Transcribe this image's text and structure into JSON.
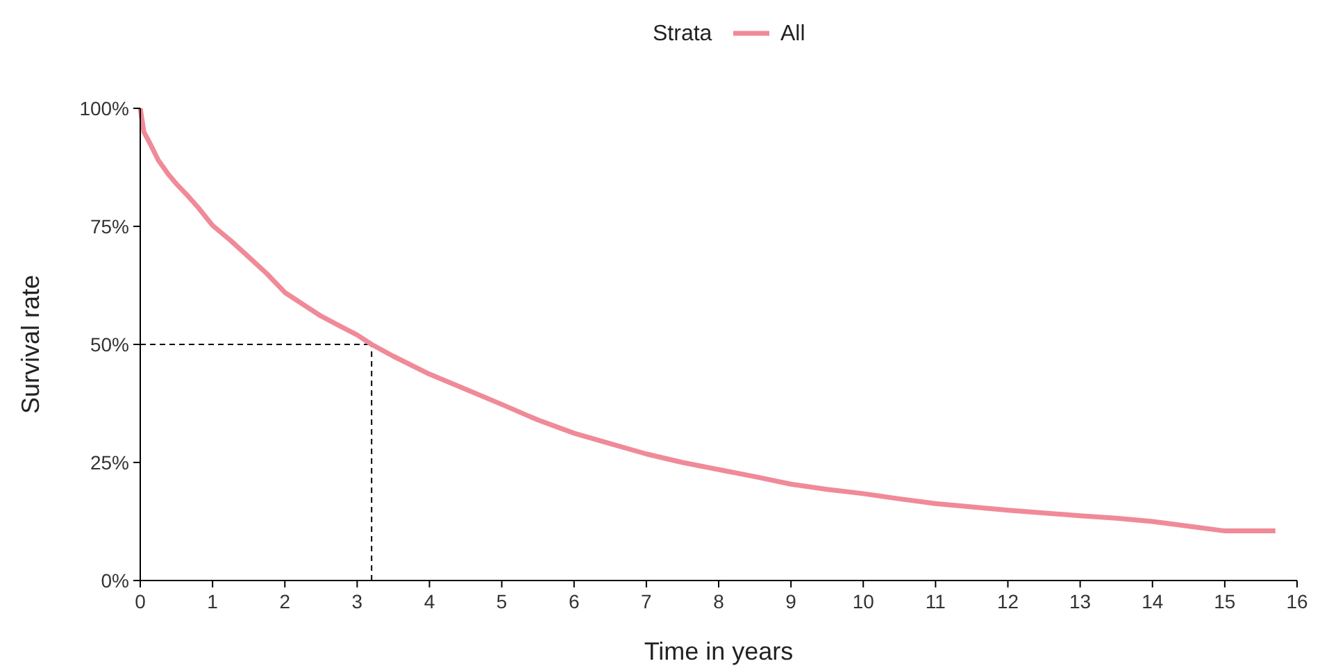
{
  "chart_data": {
    "type": "line",
    "xlabel": "Time in years",
    "ylabel": "Survival rate",
    "legend_title": "Strata",
    "legend": "top",
    "xlim": [
      0,
      16
    ],
    "xticks": [
      0,
      1,
      2,
      3,
      4,
      5,
      6,
      7,
      8,
      9,
      10,
      11,
      12,
      13,
      14,
      15,
      16
    ],
    "ylim": [
      0,
      100
    ],
    "yticks": [
      {
        "value": 0,
        "label": "0%"
      },
      {
        "value": 25,
        "label": "25%"
      },
      {
        "value": 50,
        "label": "50%"
      },
      {
        "value": 75,
        "label": "75%"
      },
      {
        "value": 100,
        "label": "100%"
      }
    ],
    "series": [
      {
        "name": "All",
        "color": "#f08a98",
        "x": [
          0,
          0.05,
          0.13,
          0.25,
          0.39,
          0.5,
          0.65,
          0.8,
          1,
          1.25,
          1.5,
          1.75,
          2,
          2.25,
          2.5,
          2.75,
          3,
          3.2,
          3.5,
          4,
          4.5,
          5,
          5.5,
          6,
          6.5,
          7,
          7.5,
          8,
          8.5,
          9,
          9.5,
          10,
          10.5,
          11,
          11.5,
          12,
          12.5,
          13,
          13.5,
          14,
          14.5,
          15,
          15.7
        ],
        "values": [
          100,
          95,
          92.7,
          89,
          86,
          84,
          81.6,
          79,
          75.2,
          72,
          68.5,
          65,
          61,
          58.5,
          56,
          54,
          52,
          50,
          47.5,
          43.7,
          40.5,
          37.3,
          34,
          31.2,
          29,
          26.8,
          25,
          23.5,
          22,
          20.4,
          19.3,
          18.4,
          17.3,
          16.3,
          15.6,
          14.9,
          14.3,
          13.7,
          13.2,
          12.5,
          11.5,
          10.5,
          10.5
        ]
      }
    ],
    "ref_lines": [
      {
        "axis": "y",
        "value": 50,
        "line_style": "dashed",
        "color": "#000000"
      },
      {
        "axis": "x",
        "value": 3.2,
        "line_style": "dashed",
        "color": "#000000"
      }
    ]
  }
}
